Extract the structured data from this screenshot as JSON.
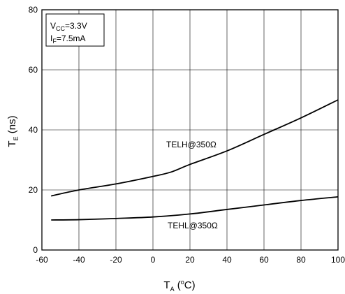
{
  "chart_data": {
    "type": "line",
    "xlabel": {
      "main": "T",
      "sub": "A",
      "unit_open": " (",
      "unit_sup": "o",
      "unit_close": "C)"
    },
    "ylabel": {
      "main": "T",
      "sub": "E",
      "unit": " (ns)"
    },
    "xlim": [
      -60,
      100
    ],
    "ylim": [
      0,
      80
    ],
    "xticks": [
      -60,
      -40,
      -20,
      0,
      20,
      40,
      60,
      80,
      100
    ],
    "yticks": [
      0,
      20,
      40,
      60,
      80
    ],
    "grid": true,
    "conditions": [
      {
        "main": "V",
        "sub": "CC",
        "rest": "=3.3V"
      },
      {
        "main": "I",
        "sub": "F",
        "rest": "=7.5mA"
      }
    ],
    "series": [
      {
        "name": "TELH@350Ω",
        "x": [
          -55,
          -40,
          -20,
          0,
          10,
          20,
          40,
          60,
          80,
          100
        ],
        "y": [
          18,
          20,
          22,
          24.5,
          26,
          28.5,
          33,
          38.5,
          44,
          50
        ]
      },
      {
        "name": "TEHL@350Ω",
        "x": [
          -55,
          -40,
          -20,
          0,
          20,
          40,
          60,
          80,
          100
        ],
        "y": [
          10,
          10.1,
          10.5,
          11,
          12,
          13.5,
          15,
          16.5,
          17.7
        ]
      }
    ]
  }
}
